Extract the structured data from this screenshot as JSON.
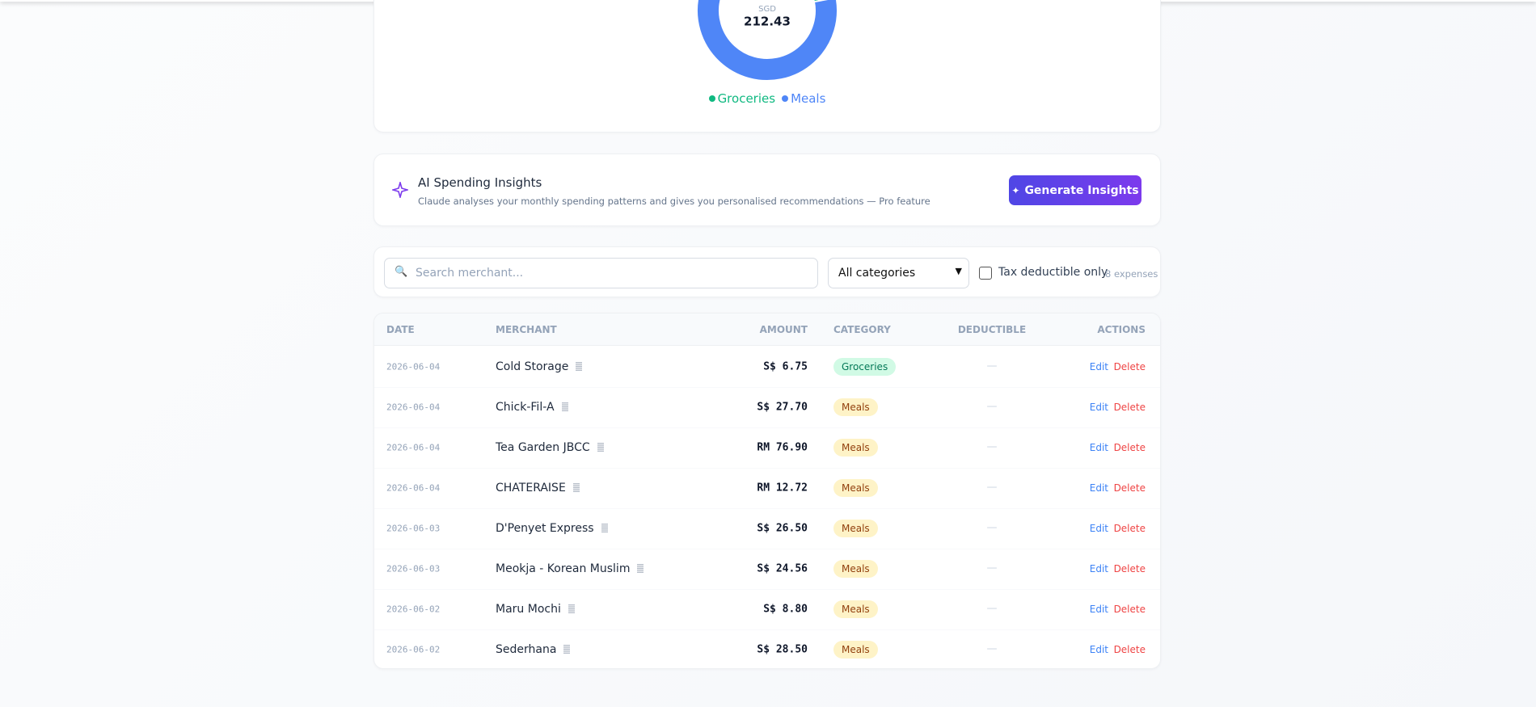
{
  "donut": {
    "center_label": "SGD",
    "total": "212.43",
    "segments": [
      {
        "name": "Groceries",
        "color": "#10b981",
        "value": 6.75
      },
      {
        "name": "Meals",
        "color": "#4f86f7",
        "value": 205.68
      }
    ]
  },
  "insights": {
    "title": "AI Spending Insights",
    "subtitle": "Claude analyses your monthly spending patterns and gives you personalised recommendations — Pro feature",
    "button": "Generate Insights"
  },
  "filters": {
    "search_placeholder": "Search merchant...",
    "category_select": "All categories",
    "tax_checkbox": "Tax deductible only",
    "count": "8 expenses"
  },
  "table": {
    "headers": [
      "DATE",
      "MERCHANT",
      "AMOUNT",
      "CATEGORY",
      "DEDUCTIBLE",
      "ACTIONS"
    ],
    "actions": [
      "Edit",
      "Delete"
    ],
    "rows": [
      [
        "2026-06-04",
        "Cold Storage",
        "S$ 6.75",
        "Groceries",
        "—"
      ],
      [
        "2026-06-04",
        "Chick-Fil-A",
        "S$ 27.70",
        "Meals",
        "—"
      ],
      [
        "2026-06-04",
        "Tea Garden JBCC",
        "RM 76.90",
        "Meals",
        "—"
      ],
      [
        "2026-06-04",
        "CHATERAISE",
        "RM 12.72",
        "Meals",
        "—"
      ],
      [
        "2026-06-03",
        "D'Penyet Express",
        "S$ 26.50",
        "Meals",
        "—"
      ],
      [
        "2026-06-03",
        "Meokja - Korean Muslim",
        "S$ 24.56",
        "Meals",
        "—"
      ],
      [
        "2026-06-02",
        "Maru Mochi",
        "S$ 8.80",
        "Meals",
        "—"
      ],
      [
        "2026-06-02",
        "Sederhana",
        "S$ 28.50",
        "Meals",
        "—"
      ]
    ]
  }
}
